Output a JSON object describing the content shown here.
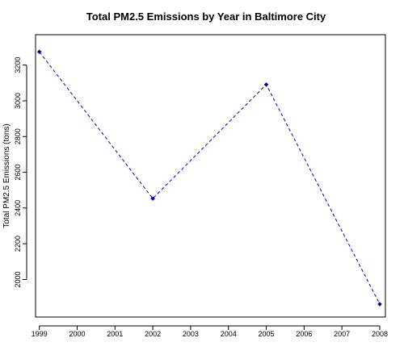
{
  "chart_data": {
    "type": "line",
    "title": "Total PM2.5 Emissions by Year in Baltimore City",
    "xlabel": "",
    "ylabel": "Total PM2.5 Emissions (tons)",
    "x_ticks": [
      "1999",
      "2000",
      "2001",
      "2002",
      "2003",
      "2004",
      "2005",
      "2006",
      "2007",
      "2008"
    ],
    "y_ticks": [
      "2000",
      "2200",
      "2400",
      "2600",
      "2800",
      "3000",
      "3200"
    ],
    "xlim": [
      1998.9,
      2008.15
    ],
    "ylim": [
      1790,
      3370
    ],
    "grid": false,
    "legend": "none",
    "series": [
      {
        "x": [
          1999,
          2002,
          2005,
          2008
        ],
        "values": [
          3274,
          2453,
          3091,
          1862
        ],
        "color": "#0000cc",
        "line_style": "dashed",
        "marker": "diamond"
      }
    ]
  }
}
